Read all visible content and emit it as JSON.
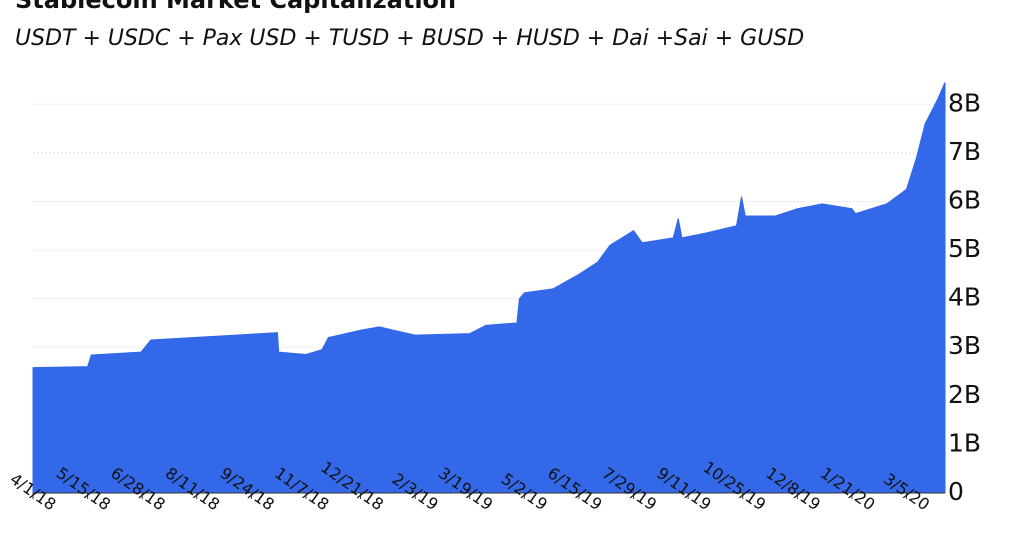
{
  "chart_data": {
    "type": "area",
    "title": "Stablecoin Market Capitalization",
    "subtitle": "USDT + USDC + Pax USD + TUSD + BUSD + HUSD + Dai +Sai + GUSD",
    "color": "#3369e8",
    "grid": true,
    "x": [
      "4/1/18",
      "5/15/18",
      "5/18/18",
      "6/27/18",
      "7/5/18",
      "10/15/18",
      "10/16/18",
      "11/7/18",
      "11/20/18",
      "11/25/18",
      "12/21/18",
      "1/5/19",
      "1/25/19",
      "2/3/19",
      "3/19/19",
      "4/1/19",
      "4/26/19",
      "4/28/19",
      "5/2/19",
      "5/25/19",
      "6/15/19",
      "6/30/19",
      "7/10/19",
      "7/29/19",
      "8/5/19",
      "8/30/19",
      "9/3/19",
      "9/6/19",
      "9/25/19",
      "10/20/19",
      "10/24/19",
      "10/27/19",
      "11/20/19",
      "12/8/19",
      "12/28/19",
      "1/21/20",
      "1/24/20",
      "2/18/20",
      "3/5/20",
      "3/13/20",
      "3/20/20",
      "3/30/20",
      "4/5/20"
    ],
    "values": [
      2.58,
      2.6,
      2.84,
      2.9,
      3.15,
      3.3,
      2.9,
      2.85,
      2.95,
      3.2,
      3.35,
      3.42,
      3.3,
      3.25,
      3.28,
      3.45,
      3.5,
      4.0,
      4.12,
      4.2,
      4.5,
      4.75,
      5.1,
      5.4,
      5.15,
      5.25,
      5.65,
      5.25,
      5.35,
      5.5,
      6.1,
      5.7,
      5.7,
      5.85,
      5.95,
      5.85,
      5.75,
      5.95,
      6.25,
      6.9,
      7.6,
      8.1,
      8.45
    ],
    "xlim": [
      "4/1/18",
      "4/5/20"
    ],
    "xticks": [
      "4/1/18",
      "5/15/18",
      "6/28/18",
      "8/11/18",
      "9/24/18",
      "11/7/18",
      "12/21/18",
      "2/3/19",
      "3/19/19",
      "5/2/19",
      "6/15/19",
      "7/29/19",
      "9/11/19",
      "10/25/19",
      "12/8/19",
      "1/21/20",
      "3/5/20"
    ],
    "ylim": [
      0,
      8.5
    ],
    "yticks": [
      {
        "value": 0,
        "label": "0"
      },
      {
        "value": 1,
        "label": "1B"
      },
      {
        "value": 2,
        "label": "2B"
      },
      {
        "value": 3,
        "label": "3B"
      },
      {
        "value": 4,
        "label": "4B"
      },
      {
        "value": 5,
        "label": "5B"
      },
      {
        "value": 6,
        "label": "6B"
      },
      {
        "value": 7,
        "label": "7B"
      },
      {
        "value": 8,
        "label": "8B"
      }
    ]
  }
}
